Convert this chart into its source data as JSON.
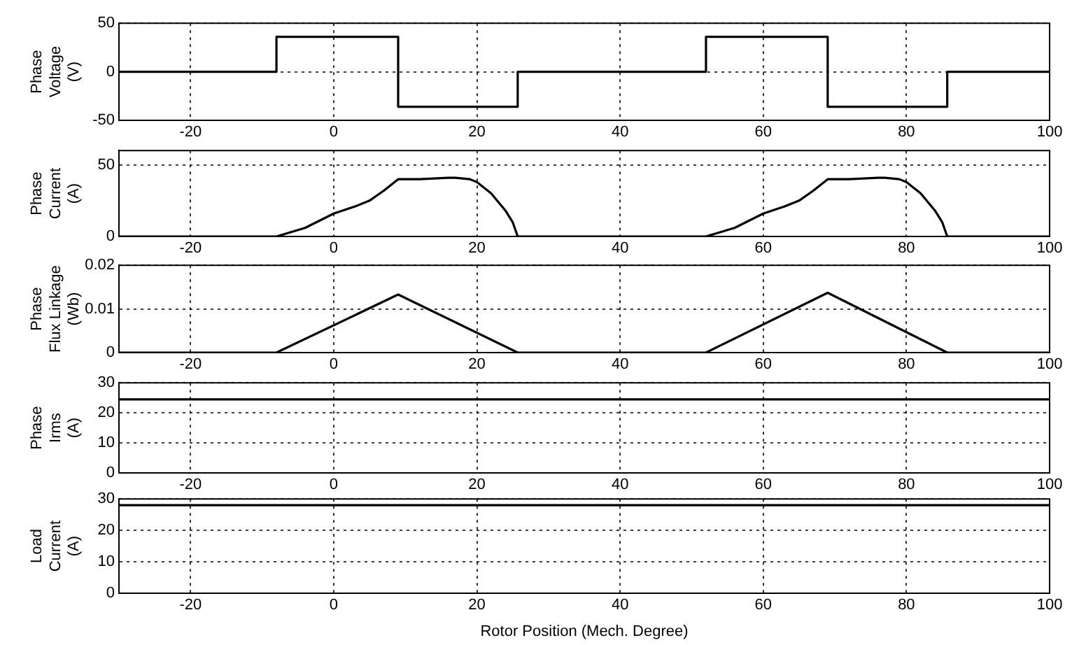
{
  "chart_data": [
    {
      "type": "step",
      "ylabel": "Phase\nVoltage\n(V)",
      "x": [
        -30,
        -8,
        9,
        25.7,
        52,
        69,
        85.7,
        100
      ],
      "series": [
        {
          "color": "#000000",
          "values": [
            0,
            36,
            -36,
            0,
            36,
            -36,
            0,
            0
          ]
        }
      ],
      "xlim": [
        -30,
        100
      ],
      "xticks": [
        -20,
        0,
        20,
        40,
        60,
        80,
        100
      ],
      "ylim": [
        -50,
        50
      ],
      "yticks": [
        -50,
        0,
        50
      ],
      "grid": true,
      "marker": "none",
      "line_style": "solid"
    },
    {
      "type": "line",
      "ylabel": "Phase\nCurrent\n(A)",
      "x": [
        -30,
        -8,
        -4,
        0,
        3,
        5,
        7,
        9,
        12,
        16,
        17,
        19,
        20,
        22,
        24,
        25,
        25.7,
        52,
        56,
        60,
        63,
        65,
        67,
        69,
        72,
        76,
        77,
        79,
        80,
        82,
        84,
        85,
        85.7,
        100
      ],
      "series": [
        {
          "color": "#000000",
          "values": [
            0,
            0,
            6,
            16,
            21,
            25,
            32,
            40,
            40,
            41,
            41,
            40,
            38,
            30,
            18,
            10,
            0,
            0,
            6,
            16,
            21,
            25,
            32,
            40,
            40,
            41,
            41,
            40,
            38,
            30,
            18,
            10,
            0,
            0
          ]
        }
      ],
      "xlim": [
        -30,
        100
      ],
      "xticks": [
        -20,
        0,
        20,
        40,
        60,
        80,
        100
      ],
      "ylim": [
        0,
        60
      ],
      "yticks": [
        0,
        50
      ],
      "grid": true,
      "marker": "none",
      "line_style": "solid"
    },
    {
      "type": "line",
      "ylabel": "Phase\nFlux Linkage\n(Wb)",
      "x": [
        -30,
        -8,
        9,
        25.7,
        52,
        69,
        85.7,
        100
      ],
      "series": [
        {
          "color": "#000000",
          "values": [
            0,
            0,
            0.0133,
            0,
            0,
            0.0137,
            0,
            0
          ]
        }
      ],
      "xlim": [
        -30,
        100
      ],
      "xticks": [
        -20,
        0,
        20,
        40,
        60,
        80,
        100
      ],
      "ylim": [
        0,
        0.02
      ],
      "yticks": [
        0,
        0.01,
        0.02
      ],
      "grid": true,
      "marker": "none",
      "line_style": "solid"
    },
    {
      "type": "line",
      "ylabel": "Phase\nIrms\n(A)",
      "x": [
        -30,
        100
      ],
      "series": [
        {
          "color": "#000000",
          "values": [
            24.5,
            24.5
          ]
        }
      ],
      "xlim": [
        -30,
        100
      ],
      "xticks": [
        -20,
        0,
        20,
        40,
        60,
        80,
        100
      ],
      "ylim": [
        0,
        30
      ],
      "yticks": [
        0,
        10,
        20,
        30
      ],
      "grid": true,
      "marker": "none",
      "line_style": "solid"
    },
    {
      "type": "line",
      "ylabel": "Load\nCurrent\n(A)",
      "xlabel": "Rotor Position (Mech. Degree)",
      "x": [
        -30,
        100
      ],
      "series": [
        {
          "color": "#000000",
          "values": [
            28,
            28
          ]
        }
      ],
      "xlim": [
        -30,
        100
      ],
      "xticks": [
        -20,
        0,
        20,
        40,
        60,
        80,
        100
      ],
      "ylim": [
        0,
        30
      ],
      "yticks": [
        0,
        10,
        20,
        30
      ],
      "grid": true,
      "marker": "none",
      "line_style": "solid"
    }
  ]
}
